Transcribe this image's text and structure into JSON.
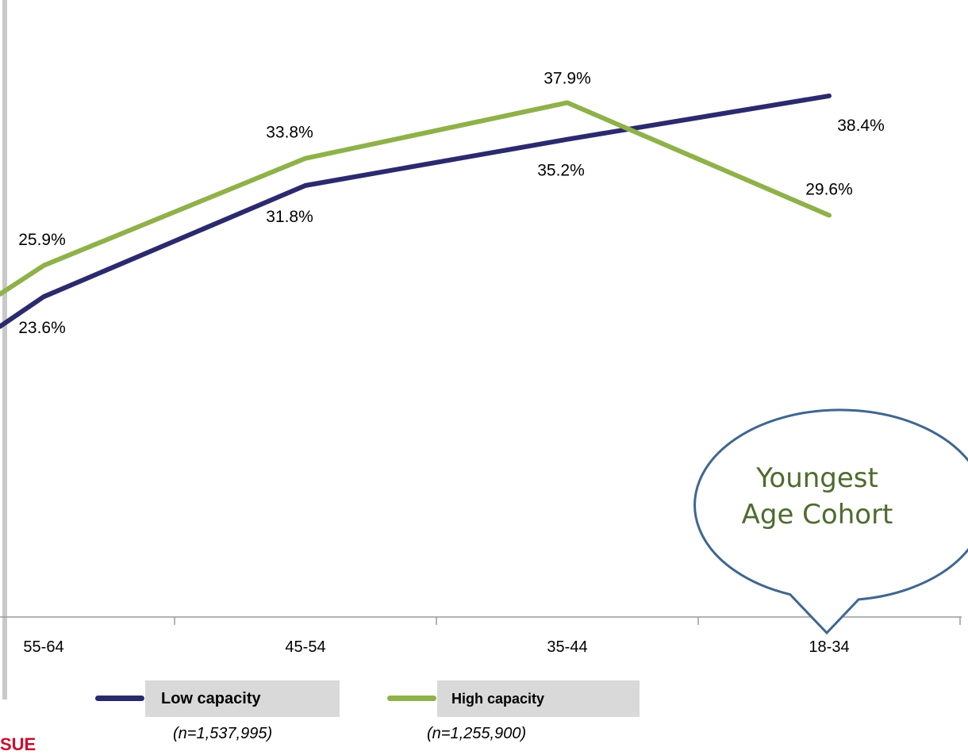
{
  "chart_data": {
    "type": "line",
    "categories": [
      "55-64",
      "45-54",
      "35-44",
      "18-34"
    ],
    "ylim": [
      0,
      45
    ],
    "grid": false,
    "legend_placement": "bottom",
    "series": [
      {
        "name": "Low capacity",
        "sample_size": "(n=1,537,995)",
        "color": "#2b2a6e",
        "values": [
          23.6,
          31.8,
          35.2,
          38.4
        ],
        "labels": [
          "23.6%",
          "31.8%",
          "35.2%",
          "38.4%"
        ]
      },
      {
        "name": "High capacity",
        "sample_size": "(n=1,255,900)",
        "color": "#8fb14a",
        "values": [
          25.9,
          33.8,
          37.9,
          29.6
        ],
        "labels": [
          "25.9%",
          "33.8%",
          "37.9%",
          "29.6%"
        ]
      }
    ],
    "annotation": {
      "line1": "Youngest",
      "line2": "Age Cohort",
      "points_to": "18-34"
    }
  },
  "footer": {
    "logo_fragment": "SUE"
  }
}
